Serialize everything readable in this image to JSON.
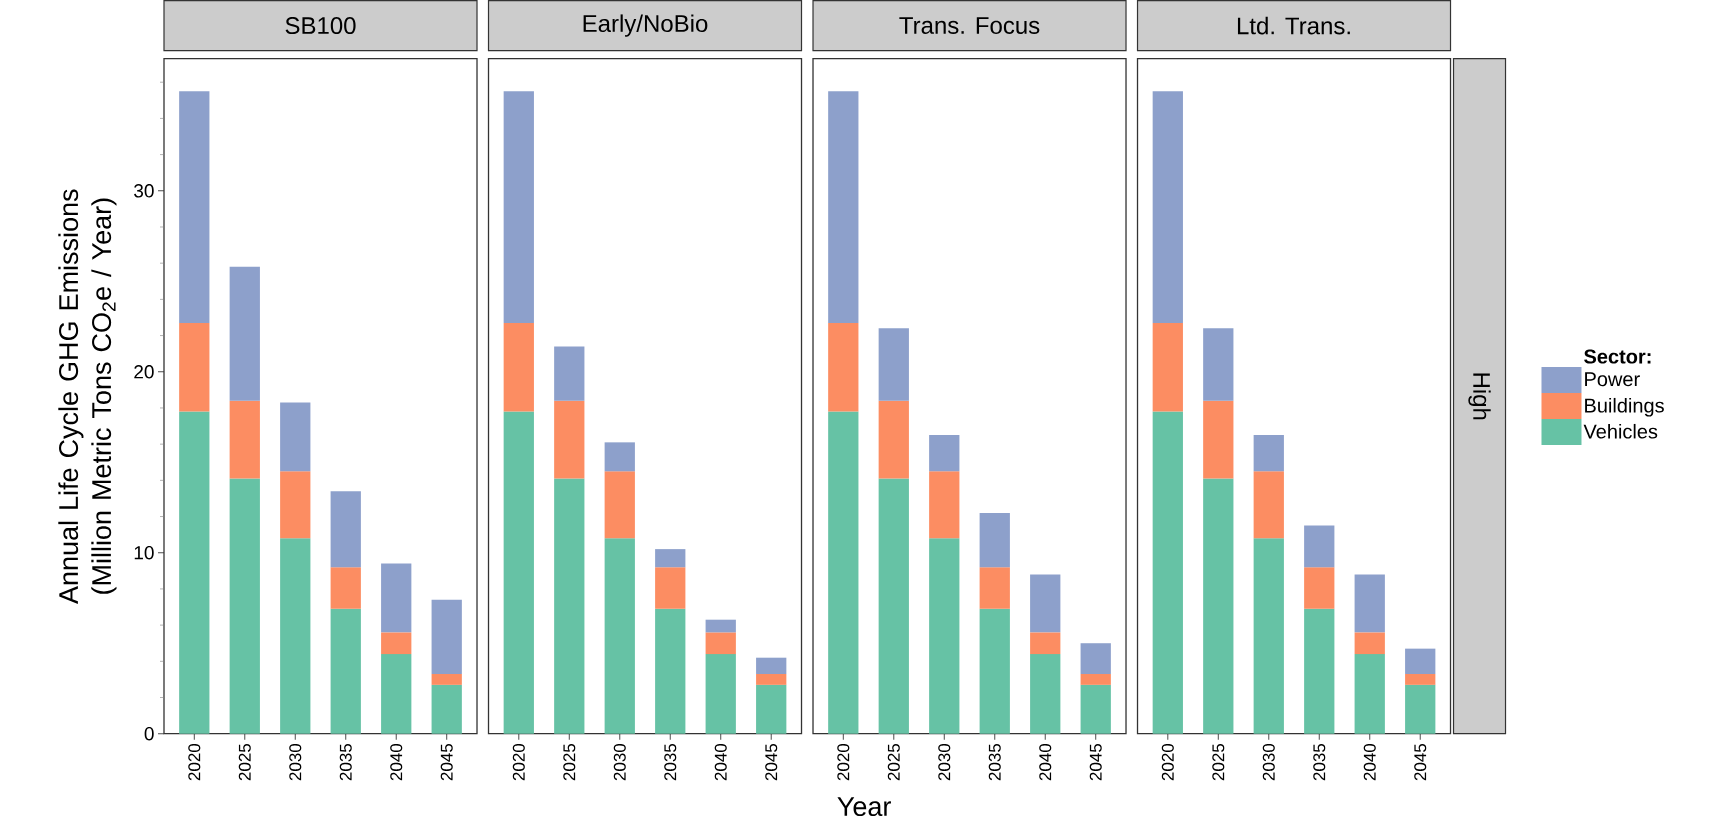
{
  "chart_data": [
    {
      "type": "bar",
      "stacked": true,
      "title": "SB100",
      "ylabel": "Annual Life Cycle GHG Emissions (Million Metric Tons CO$_{2}$e / Year)",
      "categories": [
        "2020",
        "2025",
        "2030",
        "2035",
        "2040",
        "2045"
      ],
      "series": [
        {
          "color": "#66c2a5",
          "values": [
            17.8,
            14.1,
            10.8,
            6.9,
            4.4,
            2.7
          ]
        },
        {
          "color": "#fc8d62",
          "values": [
            4.9,
            4.3,
            3.7,
            2.3,
            1.2,
            0.6
          ]
        },
        {
          "color": "#8da0cb",
          "values": [
            12.8,
            7.4,
            3.8,
            4.2,
            3.8,
            4.1
          ]
        }
      ],
      "ylim": [
        0,
        37.3
      ],
      "yticks": [
        0,
        {
          "value": 2,
          "label": null
        },
        {
          "value": 4,
          "label": null
        },
        {
          "value": 6,
          "label": null
        },
        {
          "value": 8,
          "label": null
        },
        10,
        {
          "value": 12,
          "label": null
        },
        {
          "value": 14,
          "label": null
        },
        {
          "value": 16,
          "label": null
        },
        {
          "value": 18,
          "label": null
        },
        20,
        {
          "value": 22,
          "label": null
        },
        {
          "value": 24,
          "label": null
        },
        {
          "value": 26,
          "label": null
        },
        {
          "value": 28,
          "label": null
        },
        30,
        {
          "value": 32,
          "label": null
        },
        {
          "value": 34,
          "label": null
        },
        {
          "value": 36,
          "label": null
        }
      ]
    },
    {
      "type": "bar",
      "stacked": true,
      "title": "Early/NoBio",
      "xlabel": "Year",
      "tick_labels": "x",
      "categories": [
        "2020",
        "2025",
        "2030",
        "2035",
        "2040",
        "2045"
      ],
      "series": [
        {
          "color": "#66c2a5",
          "values": [
            17.8,
            14.1,
            10.8,
            6.9,
            4.4,
            2.7
          ]
        },
        {
          "color": "#fc8d62",
          "values": [
            4.9,
            4.3,
            3.7,
            2.3,
            1.2,
            0.6
          ]
        },
        {
          "color": "#8da0cb",
          "values": [
            12.8,
            3.0,
            1.6,
            1.0,
            0.7,
            0.9
          ]
        }
      ],
      "ylim": [
        0,
        37.3
      ]
    },
    {
      "type": "bar",
      "stacked": true,
      "title": "Trans. Focus",
      "tick_labels": "x",
      "categories": [
        "2020",
        "2025",
        "2030",
        "2035",
        "2040",
        "2045"
      ],
      "series": [
        {
          "color": "#66c2a5",
          "values": [
            17.8,
            14.1,
            10.8,
            6.9,
            4.4,
            2.7
          ]
        },
        {
          "color": "#fc8d62",
          "values": [
            4.9,
            4.3,
            3.7,
            2.3,
            1.2,
            0.6
          ]
        },
        {
          "color": "#8da0cb",
          "values": [
            12.8,
            4.0,
            2.0,
            3.0,
            3.2,
            1.7
          ]
        }
      ],
      "ylim": [
        0,
        37.3
      ]
    },
    {
      "type": "bar",
      "stacked": true,
      "title": "Ltd. Trans.",
      "tick_labels": "x",
      "legend": "right",
      "legend_title": "Sector:",
      "annotations": [
        "High"
      ],
      "categories": [
        "2020",
        "2025",
        "2030",
        "2035",
        "2040",
        "2045"
      ],
      "series": [
        {
          "name": "Vehicles",
          "color": "#66c2a5",
          "values": [
            17.8,
            14.1,
            10.8,
            6.9,
            4.4,
            2.7
          ]
        },
        {
          "name": "Buildings",
          "color": "#fc8d62",
          "values": [
            4.9,
            4.3,
            3.7,
            2.3,
            1.2,
            0.6
          ]
        },
        {
          "name": "Power",
          "color": "#8da0cb",
          "values": [
            12.8,
            4.0,
            2.0,
            2.3,
            3.2,
            1.4
          ]
        }
      ],
      "ylim": [
        0,
        37.3
      ]
    }
  ]
}
